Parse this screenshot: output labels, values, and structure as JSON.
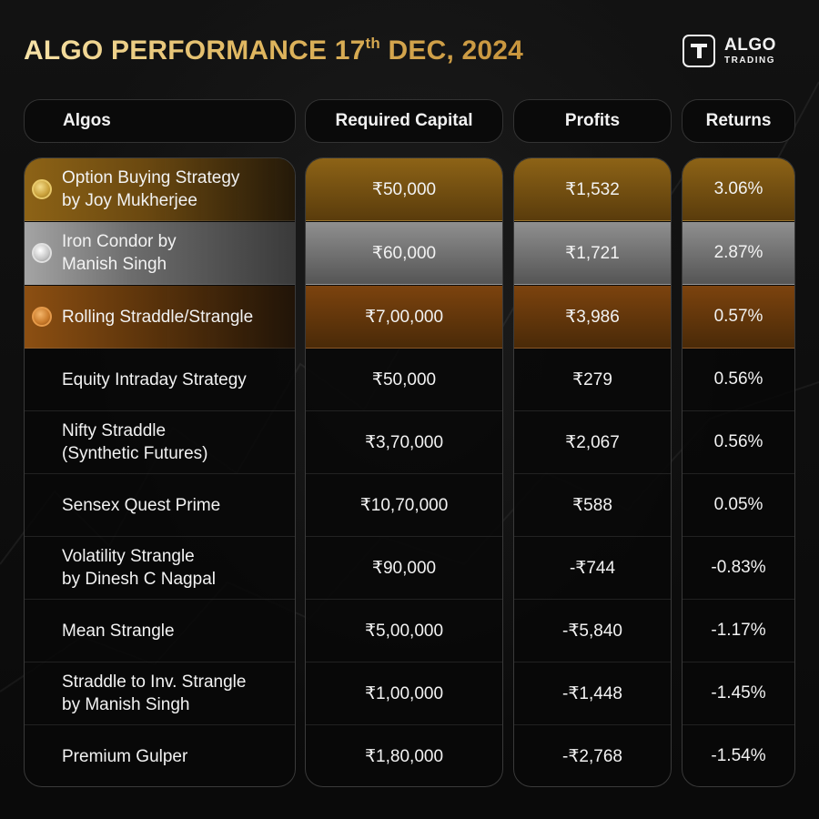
{
  "title": {
    "main": "ALGO PERFORMANCE 17",
    "sup": "th",
    "rest": " DEC, 2024"
  },
  "logo": {
    "line1": "ALGO",
    "line2": "TRADING",
    "icon": "t-logo-icon"
  },
  "headers": {
    "algos": "Algos",
    "capital": "Required Capital",
    "profits": "Profits",
    "returns": "Returns"
  },
  "rows": [
    {
      "name_l1": "Option Buying Strategy",
      "name_l2": "by Joy Mukherjee",
      "capital": "₹50,000",
      "profit": "₹1,532",
      "returns": "3.06%",
      "medal": "gold-medal-icon"
    },
    {
      "name_l1": "Iron Condor by",
      "name_l2": "Manish Singh",
      "capital": "₹60,000",
      "profit": "₹1,721",
      "returns": "2.87%",
      "medal": "silver-medal-icon"
    },
    {
      "name_l1": "Rolling Straddle/Strangle",
      "name_l2": "",
      "capital": "₹7,00,000",
      "profit": "₹3,986",
      "returns": "0.57%",
      "medal": "bronze-medal-icon"
    },
    {
      "name_l1": "Equity Intraday Strategy",
      "name_l2": "",
      "capital": "₹50,000",
      "profit": "₹279",
      "returns": "0.56%"
    },
    {
      "name_l1": "Nifty Straddle",
      "name_l2": "(Synthetic Futures)",
      "capital": "₹3,70,000",
      "profit": "₹2,067",
      "returns": "0.56%"
    },
    {
      "name_l1": "Sensex Quest Prime",
      "name_l2": "",
      "capital": "₹10,70,000",
      "profit": "₹588",
      "returns": "0.05%"
    },
    {
      "name_l1": "Volatility Strangle",
      "name_l2": "by Dinesh C Nagpal",
      "capital": "₹90,000",
      "profit": "-₹744",
      "returns": "-0.83%"
    },
    {
      "name_l1": "Mean Strangle",
      "name_l2": "",
      "capital": "₹5,00,000",
      "profit": "-₹5,840",
      "returns": "-1.17%"
    },
    {
      "name_l1": "Straddle to Inv. Strangle",
      "name_l2": "by Manish Singh",
      "capital": "₹1,00,000",
      "profit": "-₹1,448",
      "returns": "-1.45%"
    },
    {
      "name_l1": "Premium Gulper",
      "name_l2": "",
      "capital": "₹1,80,000",
      "profit": "-₹2,768",
      "returns": "-1.54%"
    }
  ]
}
